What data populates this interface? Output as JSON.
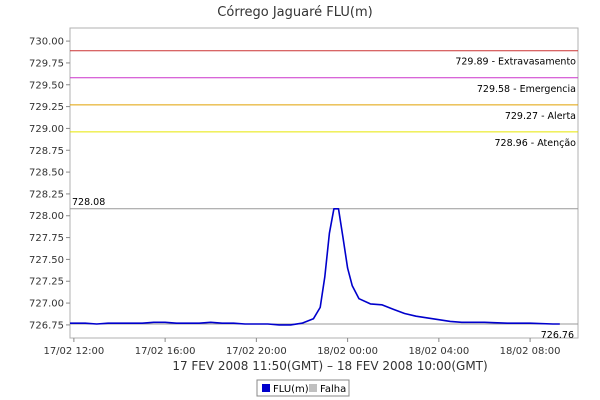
{
  "chart_data": {
    "type": "line",
    "title": "Córrego Jaguaré FLU(m)",
    "xlabel": "17 FEV 2008 11:50(GMT) – 18 FEV 2008 10:00(GMT)",
    "ylabel": "",
    "grid": false,
    "legend_position": "bottom-center",
    "x_unit": "hours from 17/02 11:50",
    "xlim": [
      "17/02 11:50",
      "18/02 10:00"
    ],
    "ylim": [
      726.6,
      730.15
    ],
    "x_ticks": [
      {
        "label": "17/02 12:00",
        "hour": 12
      },
      {
        "label": "17/02 16:00",
        "hour": 16
      },
      {
        "label": "17/02 20:00",
        "hour": 20
      },
      {
        "label": "18/02 00:00",
        "hour": 24
      },
      {
        "label": "18/02 04:00",
        "hour": 28
      },
      {
        "label": "18/02 08:00",
        "hour": 32
      }
    ],
    "y_ticks": [
      "726.75",
      "727.00",
      "727.25",
      "727.50",
      "727.75",
      "728.00",
      "728.25",
      "728.50",
      "728.75",
      "729.00",
      "729.25",
      "729.50",
      "729.75",
      "730.00"
    ],
    "thresholds": [
      {
        "value": 729.89,
        "label": "729.89 - Extravasamento",
        "color": "#cc3333"
      },
      {
        "value": 729.58,
        "label": "729.58 - Emergencia",
        "color": "#cc33cc"
      },
      {
        "value": 729.27,
        "label": "729.27 - Alerta",
        "color": "#e0a000"
      },
      {
        "value": 728.96,
        "label": "728.96 - Atenção",
        "color": "#e6e600"
      }
    ],
    "max_marker": {
      "value": 728.08,
      "label": "728.08",
      "color": "#999999"
    },
    "last_marker": {
      "value": 726.76,
      "label": "726.76",
      "color": "#999999"
    },
    "series": [
      {
        "name": "FLU(m)",
        "color": "#0000cc",
        "points": [
          [
            11.83,
            726.77
          ],
          [
            12.5,
            726.77
          ],
          [
            13.0,
            726.76
          ],
          [
            13.5,
            726.77
          ],
          [
            14.0,
            726.77
          ],
          [
            14.5,
            726.77
          ],
          [
            15.0,
            726.77
          ],
          [
            15.5,
            726.78
          ],
          [
            16.0,
            726.78
          ],
          [
            16.5,
            726.77
          ],
          [
            17.0,
            726.77
          ],
          [
            17.5,
            726.77
          ],
          [
            18.0,
            726.78
          ],
          [
            18.5,
            726.77
          ],
          [
            19.0,
            726.77
          ],
          [
            19.5,
            726.76
          ],
          [
            20.0,
            726.76
          ],
          [
            20.5,
            726.76
          ],
          [
            21.0,
            726.75
          ],
          [
            21.5,
            726.75
          ],
          [
            22.0,
            726.77
          ],
          [
            22.5,
            726.82
          ],
          [
            22.8,
            726.95
          ],
          [
            23.0,
            727.3
          ],
          [
            23.2,
            727.8
          ],
          [
            23.4,
            728.08
          ],
          [
            23.6,
            728.08
          ],
          [
            23.8,
            727.75
          ],
          [
            24.0,
            727.4
          ],
          [
            24.2,
            727.2
          ],
          [
            24.5,
            727.05
          ],
          [
            25.0,
            726.99
          ],
          [
            25.5,
            726.98
          ],
          [
            26.0,
            726.93
          ],
          [
            26.5,
            726.88
          ],
          [
            27.0,
            726.85
          ],
          [
            27.5,
            726.83
          ],
          [
            28.0,
            726.81
          ],
          [
            28.5,
            726.79
          ],
          [
            29.0,
            726.78
          ],
          [
            30.0,
            726.78
          ],
          [
            31.0,
            726.77
          ],
          [
            32.0,
            726.77
          ],
          [
            33.0,
            726.76
          ],
          [
            33.3,
            726.76
          ]
        ]
      }
    ],
    "legend": [
      {
        "label": "FLU(m)",
        "color": "#0000cc"
      },
      {
        "label": "Falha",
        "color": "#c0c0c0"
      }
    ]
  }
}
